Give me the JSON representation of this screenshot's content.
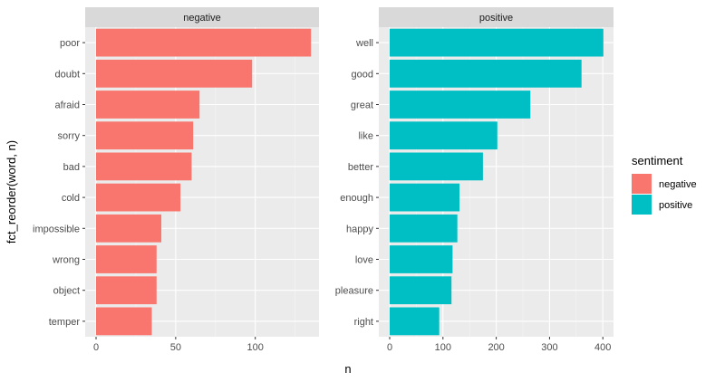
{
  "chart_data": {
    "type": "bar",
    "orientation": "horizontal",
    "xlabel": "n",
    "ylabel": "fct_reorder(word, n)",
    "grid": true,
    "legend": {
      "title": "sentiment",
      "placement": "right",
      "entries": [
        {
          "label": "negative",
          "color": "#F8766D"
        },
        {
          "label": "positive",
          "color": "#00BFC4"
        }
      ]
    },
    "facets": [
      {
        "name": "negative",
        "color": "#F8766D",
        "xlim": [
          0,
          140
        ],
        "xticks": [
          0,
          50,
          100
        ],
        "categories": [
          "poor",
          "doubt",
          "afraid",
          "sorry",
          "bad",
          "cold",
          "impossible",
          "wrong",
          "object",
          "temper"
        ],
        "values": [
          135,
          98,
          65,
          61,
          60,
          53,
          41,
          38,
          38,
          35
        ]
      },
      {
        "name": "positive",
        "color": "#00BFC4",
        "xlim": [
          0,
          420
        ],
        "xticks": [
          0,
          100,
          200,
          300,
          400
        ],
        "categories": [
          "well",
          "good",
          "great",
          "like",
          "better",
          "enough",
          "happy",
          "love",
          "pleasure",
          "right"
        ],
        "values": [
          401,
          360,
          264,
          202,
          175,
          131,
          127,
          118,
          116,
          93
        ]
      }
    ]
  }
}
